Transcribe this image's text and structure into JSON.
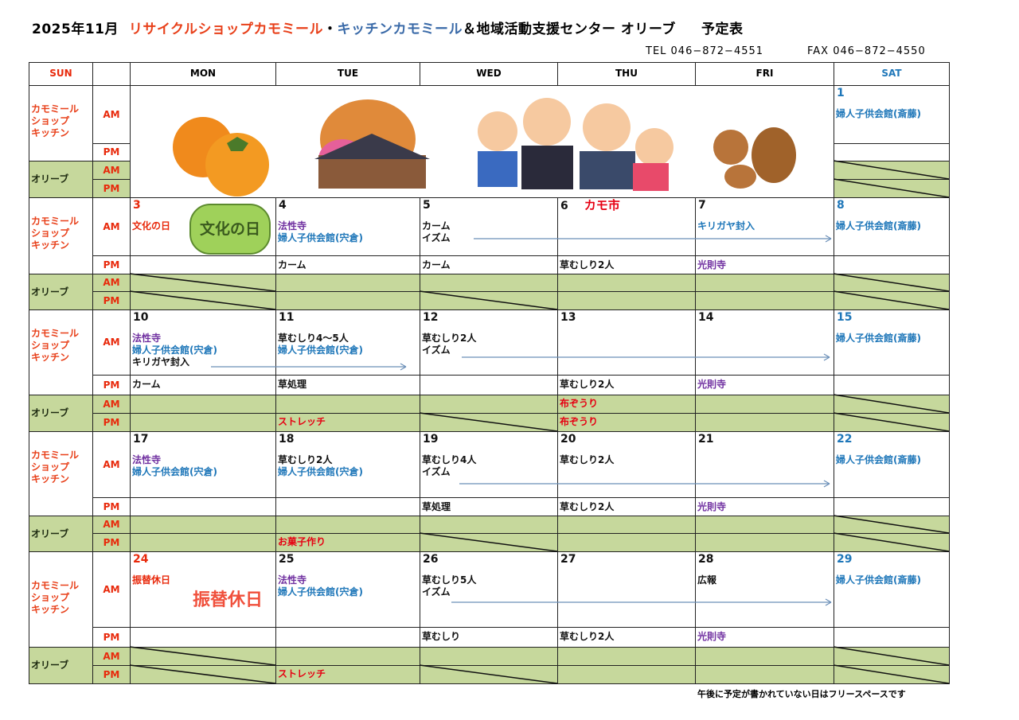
{
  "title": {
    "month": "2025年11月",
    "shop": "リサイクルショップカモミール",
    "sep": "・",
    "kitchen": "キッチンカモミール",
    "center": "＆地域活動支援センター オリーブ",
    "suffix": "予定表"
  },
  "contact": {
    "tel": "TEL 046−872−4551",
    "fax": "FAX 046−872−4550"
  },
  "headers": [
    "SUN",
    "",
    "MON",
    "TUE",
    "WED",
    "THU",
    "FRI",
    "SAT"
  ],
  "row_labels": {
    "chamomile": "カモミール ショップ キッチン",
    "olive": "オリーブ",
    "am": "AM",
    "pm": "PM"
  },
  "colors": {
    "red": "#e8290b",
    "blue": "#1f77b9",
    "purple": "#7030a0",
    "black": "#111111",
    "olive_fill": "#c6d89c"
  },
  "illustrations": [
    "persimmon-illustration",
    "temple-autumn-illustration",
    "family-illustration",
    "squirrel-illustration"
  ],
  "badges": {
    "bunka": "文化の日",
    "furikae": "振替休日"
  },
  "weeks": [
    {
      "days": [
        null,
        null,
        null,
        null,
        null,
        {
          "num": "1",
          "numColor": "blue",
          "am": [
            {
              "t": "婦人子供会館(斎藤)",
              "c": "blue"
            }
          ],
          "pm": [],
          "oam": "",
          "opm": "",
          "slash": [
            true,
            true
          ]
        }
      ]
    },
    {
      "days": [
        {
          "num": "3",
          "numColor": "red",
          "am": [
            {
              "t": "文化の日",
              "c": "red"
            }
          ],
          "pm": [],
          "oam": "",
          "opm": "",
          "slash": [
            true,
            true
          ],
          "badge": "bunka"
        },
        {
          "num": "4",
          "am": [
            {
              "t": "法性寺",
              "c": "purple"
            },
            {
              "t": "婦人子供会館(宍倉)",
              "c": "blue"
            }
          ],
          "pm": [
            {
              "t": "カーム"
            }
          ],
          "oam": "",
          "opm": "",
          "slash": [
            false,
            false
          ]
        },
        {
          "num": "5",
          "am": [
            {
              "t": "カーム"
            },
            {
              "t": "イズム"
            }
          ],
          "pm": [
            {
              "t": "カーム"
            }
          ],
          "oam": "",
          "opm": "",
          "slash": [
            false,
            true
          ]
        },
        {
          "num": "6",
          "extra": "カモ市",
          "am": [],
          "pm": [
            {
              "t": "草むしり2人"
            }
          ],
          "oam": "",
          "opm": "",
          "slash": [
            false,
            false
          ]
        },
        {
          "num": "7",
          "am": [
            {
              "t": "キリガヤ封入",
              "c": "blue"
            }
          ],
          "pm": [
            {
              "t": "光則寺",
              "c": "purple"
            }
          ],
          "oam": "",
          "opm": "",
          "slash": [
            false,
            false
          ]
        },
        {
          "num": "8",
          "numColor": "blue",
          "am": [
            {
              "t": "婦人子供会館(斎藤)",
              "c": "blue"
            }
          ],
          "pm": [],
          "oam": "",
          "opm": "",
          "slash": [
            true,
            true
          ]
        }
      ]
    },
    {
      "days": [
        {
          "num": "10",
          "am": [
            {
              "t": "法性寺",
              "c": "purple"
            },
            {
              "t": "婦人子供会館(宍倉)",
              "c": "blue"
            },
            {
              "t": "キリガヤ封入"
            }
          ],
          "pm": [
            {
              "t": "カーム"
            }
          ],
          "oam": "",
          "opm": "",
          "slash": [
            false,
            false
          ]
        },
        {
          "num": "11",
          "am": [
            {
              "t": "草むしり4〜5人"
            },
            {
              "t": "婦人子供会館(宍倉)",
              "c": "blue"
            }
          ],
          "pm": [
            {
              "t": "草処理"
            }
          ],
          "oam": "",
          "opm": "ストレッチ",
          "slash": [
            false,
            false
          ]
        },
        {
          "num": "12",
          "am": [
            {
              "t": "草むしり2人"
            },
            {
              "t": "イズム"
            }
          ],
          "pm": [],
          "oam": "",
          "opm": "",
          "slash": [
            false,
            true
          ]
        },
        {
          "num": "13",
          "am": [],
          "pm": [
            {
              "t": "草むしり2人"
            }
          ],
          "oam": "布ぞうり",
          "opm": "布ぞうり",
          "slash": [
            false,
            false
          ]
        },
        {
          "num": "14",
          "am": [],
          "pm": [
            {
              "t": "光則寺",
              "c": "purple"
            }
          ],
          "oam": "",
          "opm": "",
          "slash": [
            false,
            false
          ]
        },
        {
          "num": "15",
          "numColor": "blue",
          "am": [
            {
              "t": "婦人子供会館(斎藤)",
              "c": "blue"
            }
          ],
          "pm": [],
          "oam": "",
          "opm": "",
          "slash": [
            true,
            true
          ]
        }
      ]
    },
    {
      "days": [
        {
          "num": "17",
          "am": [
            {
              "t": "法性寺",
              "c": "purple"
            },
            {
              "t": "婦人子供会館(宍倉)",
              "c": "blue"
            }
          ],
          "pm": [],
          "oam": "",
          "opm": "",
          "slash": [
            false,
            false
          ]
        },
        {
          "num": "18",
          "am": [
            {
              "t": "草むしり2人"
            },
            {
              "t": "婦人子供会館(宍倉)",
              "c": "blue"
            }
          ],
          "pm": [],
          "oam": "",
          "opm": "お菓子作り",
          "slash": [
            false,
            false
          ]
        },
        {
          "num": "19",
          "am": [
            {
              "t": "草むしり4人"
            },
            {
              "t": "イズム"
            }
          ],
          "pm": [
            {
              "t": "草処理"
            }
          ],
          "oam": "",
          "opm": "",
          "slash": [
            false,
            true
          ]
        },
        {
          "num": "20",
          "am": [
            {
              "t": "草むしり2人"
            }
          ],
          "pm": [
            {
              "t": "草むしり2人"
            }
          ],
          "oam": "",
          "opm": "",
          "slash": [
            false,
            false
          ]
        },
        {
          "num": "21",
          "am": [],
          "pm": [
            {
              "t": "光則寺",
              "c": "purple"
            }
          ],
          "oam": "",
          "opm": "",
          "slash": [
            false,
            false
          ]
        },
        {
          "num": "22",
          "numColor": "blue",
          "am": [
            {
              "t": "婦人子供会館(斎藤)",
              "c": "blue"
            }
          ],
          "pm": [],
          "oam": "",
          "opm": "",
          "slash": [
            true,
            true
          ]
        }
      ]
    },
    {
      "days": [
        {
          "num": "24",
          "numColor": "red",
          "am": [
            {
              "t": "振替休日",
              "c": "red"
            }
          ],
          "pm": [],
          "oam": "",
          "opm": "",
          "slash": [
            true,
            true
          ],
          "badge": "furikae"
        },
        {
          "num": "25",
          "am": [
            {
              "t": "法性寺",
              "c": "purple"
            },
            {
              "t": "婦人子供会館(宍倉)",
              "c": "blue"
            }
          ],
          "pm": [],
          "oam": "",
          "opm": "ストレッチ",
          "slash": [
            false,
            false
          ]
        },
        {
          "num": "26",
          "am": [
            {
              "t": "草むしり5人"
            },
            {
              "t": "イズム"
            }
          ],
          "pm": [
            {
              "t": "草むしり"
            }
          ],
          "oam": "",
          "opm": "",
          "slash": [
            false,
            true
          ]
        },
        {
          "num": "27",
          "am": [],
          "pm": [
            {
              "t": "草むしり2人"
            }
          ],
          "oam": "",
          "opm": "",
          "slash": [
            false,
            false
          ]
        },
        {
          "num": "28",
          "am": [
            {
              "t": "広報"
            }
          ],
          "pm": [
            {
              "t": "光則寺",
              "c": "purple"
            }
          ],
          "oam": "",
          "opm": "",
          "slash": [
            false,
            false
          ]
        },
        {
          "num": "29",
          "numColor": "blue",
          "am": [
            {
              "t": "婦人子供会館(斎藤)",
              "c": "blue"
            }
          ],
          "pm": [],
          "oam": "",
          "opm": "",
          "slash": [
            true,
            true
          ]
        }
      ]
    }
  ],
  "footer": "午後に予定が書かれていない日はフリースペースです"
}
